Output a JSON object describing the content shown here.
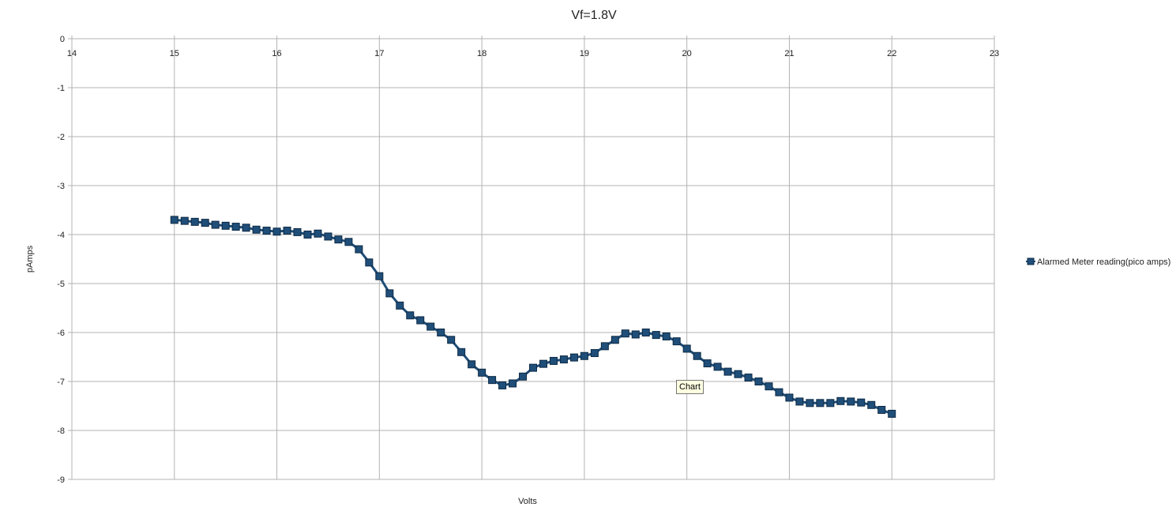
{
  "chart_data": {
    "type": "line",
    "title": "Vf=1.8V",
    "xlabel": "Volts",
    "ylabel": "pAmps",
    "xlim": [
      14,
      23
    ],
    "ylim": [
      -9,
      0
    ],
    "x_ticks": [
      14,
      15,
      16,
      17,
      18,
      19,
      20,
      21,
      22,
      23
    ],
    "y_ticks": [
      0,
      -1,
      -2,
      -3,
      -4,
      -5,
      -6,
      -7,
      -8,
      -9
    ],
    "x_axis_position": "top",
    "grid": true,
    "legend_position": "right",
    "series": [
      {
        "name": "Alarmed Meter reading(pico amps)",
        "color": "#1f4e79",
        "x": [
          15.0,
          15.1,
          15.2,
          15.3,
          15.4,
          15.5,
          15.6,
          15.7,
          15.8,
          15.9,
          16.0,
          16.1,
          16.2,
          16.3,
          16.4,
          16.5,
          16.6,
          16.7,
          16.8,
          16.9,
          17.0,
          17.1,
          17.2,
          17.3,
          17.4,
          17.5,
          17.6,
          17.7,
          17.8,
          17.9,
          18.0,
          18.1,
          18.2,
          18.3,
          18.4,
          18.5,
          18.6,
          18.7,
          18.8,
          18.9,
          19.0,
          19.1,
          19.2,
          19.3,
          19.4,
          19.5,
          19.6,
          19.7,
          19.8,
          19.9,
          20.0,
          20.1,
          20.2,
          20.3,
          20.4,
          20.5,
          20.6,
          20.7,
          20.8,
          20.9,
          21.0,
          21.1,
          21.2,
          21.3,
          21.4,
          21.5,
          21.6,
          21.7,
          21.8,
          21.9,
          22.0
        ],
        "y": [
          -3.7,
          -3.72,
          -3.74,
          -3.76,
          -3.8,
          -3.82,
          -3.84,
          -3.86,
          -3.9,
          -3.92,
          -3.94,
          -3.92,
          -3.95,
          -4.0,
          -3.98,
          -4.04,
          -4.1,
          -4.15,
          -4.3,
          -4.57,
          -4.85,
          -5.2,
          -5.45,
          -5.65,
          -5.75,
          -5.88,
          -6.0,
          -6.15,
          -6.4,
          -6.65,
          -6.82,
          -6.97,
          -7.08,
          -7.04,
          -6.9,
          -6.72,
          -6.64,
          -6.58,
          -6.55,
          -6.51,
          -6.48,
          -6.42,
          -6.28,
          -6.15,
          -6.02,
          -6.04,
          -6.0,
          -6.05,
          -6.08,
          -6.18,
          -6.33,
          -6.48,
          -6.63,
          -6.7,
          -6.8,
          -6.85,
          -6.92,
          -7.0,
          -7.1,
          -7.22,
          -7.33,
          -7.41,
          -7.44,
          -7.44,
          -7.44,
          -7.4,
          -7.41,
          -7.43,
          -7.48,
          -7.58,
          -7.66
        ]
      }
    ],
    "tooltip": "Chart"
  }
}
